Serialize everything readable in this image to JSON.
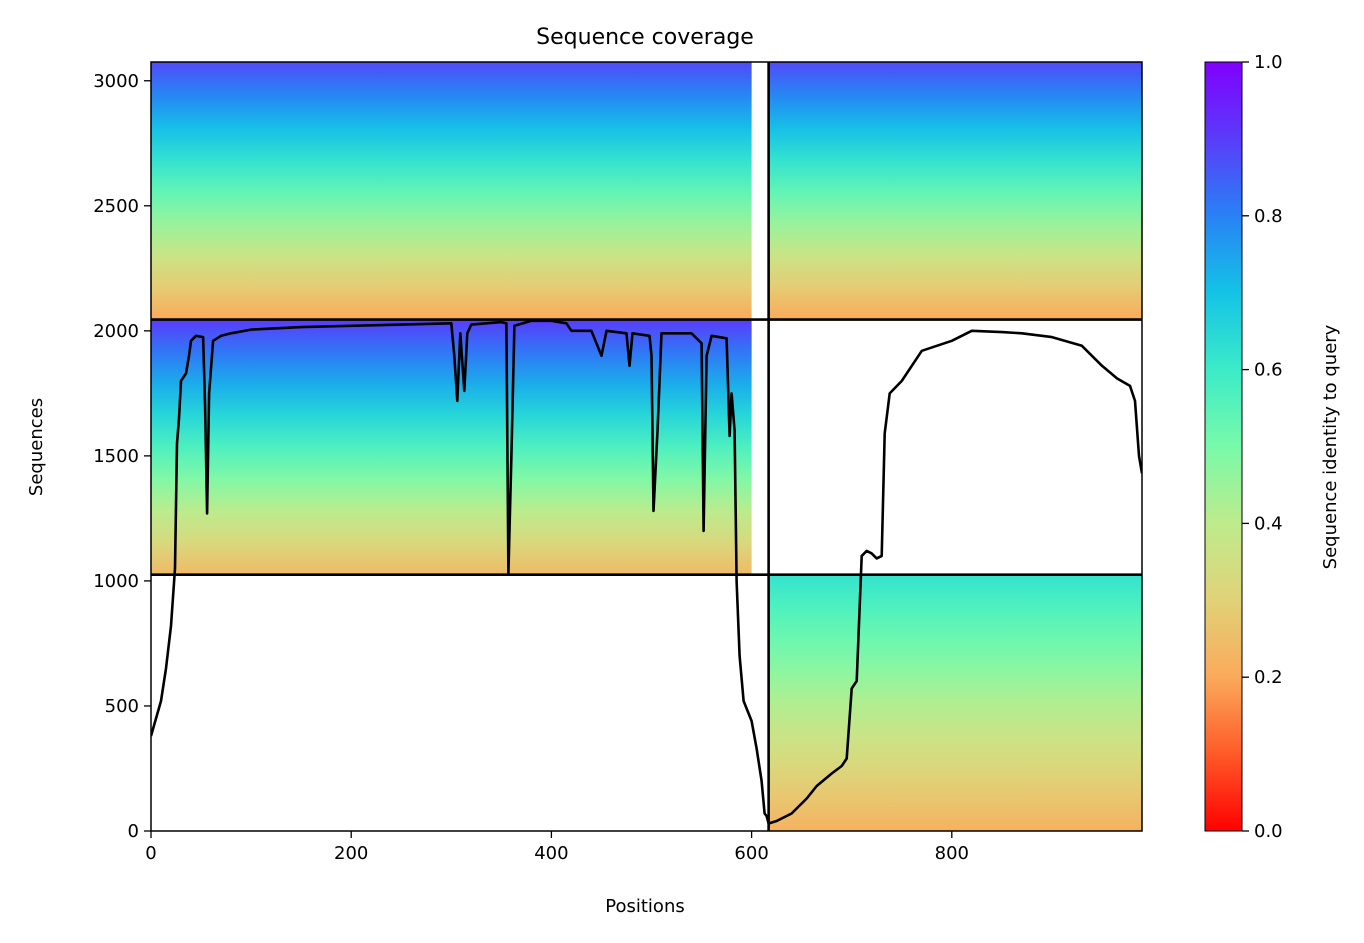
{
  "chart_data": {
    "type": "heatmap",
    "title": "Sequence coverage",
    "xlabel": "Positions",
    "ylabel": "Sequences",
    "xlim": [
      0,
      990
    ],
    "ylim": [
      0,
      3075
    ],
    "xticks": [
      0,
      200,
      400,
      600,
      800
    ],
    "yticks": [
      0,
      500,
      1000,
      1500,
      2000,
      2500,
      3000
    ],
    "grid": false,
    "colorbar": {
      "label": "Sequence identity to query",
      "range": [
        0.0,
        1.0
      ],
      "ticks": [
        "0.0",
        "0.2",
        "0.4",
        "0.6",
        "0.8",
        "1.0"
      ],
      "colormap": "rainbow_r"
    },
    "block_dividers": {
      "x": [
        617
      ],
      "y": [
        1025,
        2045
      ]
    },
    "blocks": [
      {
        "name": "upper-left",
        "x": [
          0,
          617
        ],
        "y": [
          2045,
          3075
        ],
        "identity_top": 0.88,
        "identity_bottom": 0.2,
        "covered_x": [
          0,
          600
        ]
      },
      {
        "name": "upper-right",
        "x": [
          617,
          990
        ],
        "y": [
          2045,
          3075
        ],
        "identity_top": 0.88,
        "identity_bottom": 0.2,
        "covered_x": [
          617,
          990
        ]
      },
      {
        "name": "middle-left",
        "x": [
          0,
          617
        ],
        "y": [
          1025,
          2045
        ],
        "identity_top": 0.9,
        "identity_bottom": 0.24,
        "covered_x": [
          0,
          600
        ]
      },
      {
        "name": "lower-right",
        "x": [
          617,
          990
        ],
        "y": [
          0,
          1025
        ],
        "identity_top": 0.62,
        "identity_bottom": 0.22,
        "covered_x": [
          617,
          990
        ]
      }
    ],
    "series": [
      {
        "type": "line",
        "color": "#000000",
        "points": [
          [
            0,
            380
          ],
          [
            5,
            450
          ],
          [
            10,
            520
          ],
          [
            15,
            650
          ],
          [
            20,
            820
          ],
          [
            24,
            1050
          ],
          [
            26,
            1550
          ],
          [
            28,
            1650
          ],
          [
            30,
            1800
          ],
          [
            35,
            1830
          ],
          [
            38,
            1900
          ],
          [
            40,
            1960
          ],
          [
            45,
            1980
          ],
          [
            52,
            1975
          ],
          [
            54,
            1700
          ],
          [
            56,
            1270
          ],
          [
            58,
            1750
          ],
          [
            62,
            1960
          ],
          [
            70,
            1980
          ],
          [
            80,
            1990
          ],
          [
            100,
            2005
          ],
          [
            150,
            2015
          ],
          [
            200,
            2020
          ],
          [
            250,
            2025
          ],
          [
            300,
            2030
          ],
          [
            303,
            1900
          ],
          [
            306,
            1720
          ],
          [
            309,
            1990
          ],
          [
            313,
            1760
          ],
          [
            316,
            1990
          ],
          [
            320,
            2025
          ],
          [
            350,
            2035
          ],
          [
            355,
            2030
          ],
          [
            357,
            1030
          ],
          [
            360,
            1500
          ],
          [
            363,
            2020
          ],
          [
            380,
            2040
          ],
          [
            400,
            2040
          ],
          [
            415,
            2030
          ],
          [
            420,
            2000
          ],
          [
            440,
            2000
          ],
          [
            450,
            1900
          ],
          [
            455,
            2000
          ],
          [
            475,
            1990
          ],
          [
            478,
            1860
          ],
          [
            481,
            1990
          ],
          [
            498,
            1980
          ],
          [
            500,
            1900
          ],
          [
            502,
            1280
          ],
          [
            506,
            1600
          ],
          [
            510,
            1990
          ],
          [
            540,
            1990
          ],
          [
            550,
            1950
          ],
          [
            552,
            1200
          ],
          [
            555,
            1900
          ],
          [
            560,
            1980
          ],
          [
            575,
            1970
          ],
          [
            578,
            1580
          ],
          [
            580,
            1750
          ],
          [
            583,
            1600
          ],
          [
            585,
            1000
          ],
          [
            588,
            700
          ],
          [
            592,
            520
          ],
          [
            600,
            440
          ],
          [
            605,
            330
          ],
          [
            610,
            200
          ],
          [
            613,
            70
          ],
          [
            615,
            60
          ],
          [
            617,
            30
          ],
          [
            625,
            40
          ],
          [
            640,
            70
          ],
          [
            655,
            130
          ],
          [
            665,
            180
          ],
          [
            680,
            230
          ],
          [
            690,
            260
          ],
          [
            695,
            290
          ],
          [
            700,
            570
          ],
          [
            705,
            600
          ],
          [
            710,
            1100
          ],
          [
            715,
            1120
          ],
          [
            720,
            1110
          ],
          [
            725,
            1090
          ],
          [
            730,
            1100
          ],
          [
            733,
            1590
          ],
          [
            738,
            1750
          ],
          [
            750,
            1800
          ],
          [
            770,
            1920
          ],
          [
            800,
            1960
          ],
          [
            820,
            2000
          ],
          [
            850,
            1995
          ],
          [
            870,
            1990
          ],
          [
            900,
            1975
          ],
          [
            930,
            1940
          ],
          [
            950,
            1860
          ],
          [
            965,
            1810
          ],
          [
            978,
            1780
          ],
          [
            983,
            1720
          ],
          [
            987,
            1500
          ],
          [
            990,
            1430
          ]
        ]
      }
    ]
  }
}
